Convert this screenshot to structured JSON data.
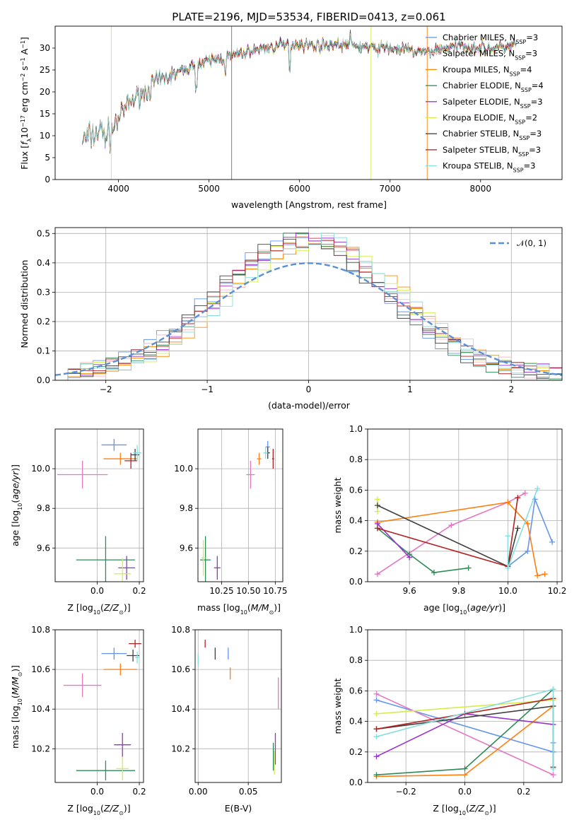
{
  "chart_data": [
    {
      "id": "spectrum",
      "type": "line",
      "title": "PLATE=2196, MJD=53534, FIBERID=0413, z=0.061",
      "xlabel": "wavelength [Angstrom, rest frame]",
      "ylabel": "Flux [f_λ 10^-17 erg cm^-2 s^-1 A^-1]",
      "xlim": [
        3300,
        8900
      ],
      "ylim": [
        0,
        35
      ],
      "xticks": [
        4000,
        5000,
        6000,
        7000,
        8000
      ],
      "yticks": [
        0,
        5,
        10,
        15,
        20,
        25,
        30
      ],
      "grid": false,
      "legend_position": "top-right",
      "continuum": {
        "x": [
          3600,
          3700,
          3800,
          3900,
          4000,
          4100,
          4200,
          4300,
          4400,
          4500,
          4600,
          4800,
          5000,
          5200,
          5400,
          5600,
          5800,
          6000,
          6200,
          6400,
          6600,
          6800,
          7000,
          7200,
          7400,
          7600,
          7800,
          8000,
          8200,
          8400
        ],
        "y": [
          9,
          10,
          11,
          10,
          14,
          17,
          19,
          20,
          22,
          23,
          24,
          25.5,
          27,
          28,
          29,
          30,
          30.5,
          31,
          30.5,
          31,
          30.5,
          30,
          30,
          29.5,
          29,
          30,
          30.5,
          30,
          30,
          31
        ]
      },
      "series": [
        {
          "name": "Chabrier MILES, N_SSP=3",
          "color": "#6495ed"
        },
        {
          "name": "Salpeter MILES, N_SSP=3",
          "color": "#ffb6c1"
        },
        {
          "name": "Kroupa MILES, N_SSP=4",
          "color": "#ff8c00"
        },
        {
          "name": "Chabrier ELODIE, N_SSP=4",
          "color": "#2e8b57"
        },
        {
          "name": "Salpeter ELODIE, N_SSP=3",
          "color": "#9932cc"
        },
        {
          "name": "Kroupa ELODIE, N_SSP=2",
          "color": "#d4ed4a"
        },
        {
          "name": "Chabrier STELIB, N_SSP=3",
          "color": "#404040"
        },
        {
          "name": "Salpeter STELIB, N_SSP=3",
          "color": "#b22222"
        },
        {
          "name": "Kroupa STELIB, N_SSP=3",
          "color": "#87dede"
        }
      ]
    },
    {
      "id": "residuals",
      "type": "line",
      "xlabel": "(data-model)/error",
      "ylabel": "Normed distribution",
      "xlim": [
        -2.5,
        2.5
      ],
      "ylim": [
        0,
        0.52
      ],
      "xticks": [
        -2,
        -1,
        0,
        1,
        2
      ],
      "yticks": [
        0.0,
        0.1,
        0.2,
        0.3,
        0.4,
        0.5
      ],
      "grid": true,
      "legend_position": "top-right",
      "legend": "𝒩(0, 1)",
      "normal_curve": {
        "mean": 0,
        "sigma": 1,
        "color": "#5b8fd6"
      }
    },
    {
      "id": "age-vs-Z",
      "type": "scatter",
      "xlabel": "Z [log10(Z/Z⊙)]",
      "ylabel": "age  [log10(age/yr)]",
      "xlim": [
        -0.2,
        0.22
      ],
      "ylim": [
        9.43,
        10.2
      ],
      "xticks": [
        0.0,
        0.2
      ],
      "yticks": [
        9.6,
        9.8,
        10.0
      ],
      "grid": true,
      "points": [
        {
          "x": 0.08,
          "y": 10.12,
          "xerr": 0.06,
          "yerr": 0.03,
          "c": "#6495ed"
        },
        {
          "x": -0.07,
          "y": 9.97,
          "xerr": 0.12,
          "yerr": 0.07,
          "c": "#e377c2"
        },
        {
          "x": 0.11,
          "y": 10.05,
          "xerr": 0.08,
          "yerr": 0.03,
          "c": "#ff7f0e"
        },
        {
          "x": 0.04,
          "y": 9.54,
          "xerr": 0.14,
          "yerr": 0.12,
          "c": "#2e8b57"
        },
        {
          "x": 0.14,
          "y": 9.5,
          "xerr": 0.04,
          "yerr": 0.06,
          "c": "#9932cc"
        },
        {
          "x": 0.12,
          "y": 9.47,
          "xerr": 0.04,
          "yerr": 0.08,
          "c": "#d4ed4a"
        },
        {
          "x": 0.18,
          "y": 10.07,
          "xerr": 0.02,
          "yerr": 0.03,
          "c": "#404040"
        },
        {
          "x": 0.16,
          "y": 10.04,
          "xerr": 0.03,
          "yerr": 0.04,
          "c": "#b22222"
        },
        {
          "x": 0.19,
          "y": 10.08,
          "xerr": 0.02,
          "yerr": 0.04,
          "c": "#87dede"
        }
      ]
    },
    {
      "id": "age-vs-mass",
      "type": "scatter",
      "xlabel": "mass [log10(M/M⊙)]",
      "ylabel": "",
      "xlim": [
        10.03,
        10.82
      ],
      "ylim": [
        9.43,
        10.2
      ],
      "xticks": [
        10.25,
        10.5,
        10.75
      ],
      "yticks": [
        9.6,
        9.8,
        10.0
      ],
      "grid": true,
      "points": [
        {
          "x": 10.68,
          "y": 10.11,
          "xerr": 0.02,
          "yerr": 0.03,
          "c": "#6495ed"
        },
        {
          "x": 10.52,
          "y": 9.97,
          "xerr": 0.04,
          "yerr": 0.07,
          "c": "#e377c2"
        },
        {
          "x": 10.6,
          "y": 10.05,
          "xerr": 0.02,
          "yerr": 0.03,
          "c": "#ff7f0e"
        },
        {
          "x": 10.1,
          "y": 9.54,
          "xerr": 0.05,
          "yerr": 0.12,
          "c": "#2e8b57"
        },
        {
          "x": 10.21,
          "y": 9.5,
          "xerr": 0.03,
          "yerr": 0.06,
          "c": "#9932cc"
        },
        {
          "x": 10.08,
          "y": 9.55,
          "xerr": 0.02,
          "yerr": 0.09,
          "c": "#d4ed4a"
        },
        {
          "x": 10.68,
          "y": 10.08,
          "xerr": 0.02,
          "yerr": 0.03,
          "c": "#404040"
        },
        {
          "x": 10.73,
          "y": 10.05,
          "xerr": 0.01,
          "yerr": 0.05,
          "c": "#b22222"
        },
        {
          "x": 10.66,
          "y": 10.08,
          "xerr": 0.02,
          "yerr": 0.03,
          "c": "#87dede"
        }
      ]
    },
    {
      "id": "mass-weight-vs-age",
      "type": "line",
      "xlabel": "age  [log10(age/yr)]",
      "ylabel": "mass weight",
      "xlim": [
        9.43,
        10.22
      ],
      "ylim": [
        0,
        1
      ],
      "xticks": [
        9.6,
        9.8,
        10.0,
        10.2
      ],
      "yticks": [
        0.0,
        0.2,
        0.4,
        0.6,
        0.8,
        1.0
      ],
      "grid": true,
      "series": [
        {
          "c": "#6495ed",
          "x": [
            10.0,
            10.08,
            10.11,
            10.18
          ],
          "y": [
            0.1,
            0.2,
            0.54,
            0.26
          ]
        },
        {
          "c": "#e377c2",
          "x": [
            9.47,
            9.77,
            10.0,
            10.07
          ],
          "y": [
            0.05,
            0.37,
            0.52,
            0.58
          ]
        },
        {
          "c": "#ff7f0e",
          "x": [
            9.47,
            10.0,
            10.08,
            10.12,
            10.15
          ],
          "y": [
            0.39,
            0.52,
            0.38,
            0.04,
            0.05
          ]
        },
        {
          "c": "#2e8b57",
          "x": [
            9.47,
            9.6,
            9.7,
            9.84
          ],
          "y": [
            0.35,
            0.18,
            0.06,
            0.09
          ]
        },
        {
          "c": "#9932cc",
          "x": [
            9.47,
            9.6
          ],
          "y": [
            0.38,
            0.16
          ]
        },
        {
          "c": "#d4ed4a",
          "x": [
            9.47,
            9.47
          ],
          "y": [
            0.46,
            0.54
          ]
        },
        {
          "c": "#404040",
          "x": [
            9.47,
            10.0,
            10.04
          ],
          "y": [
            0.5,
            0.1,
            0.35
          ]
        },
        {
          "c": "#b22222",
          "x": [
            9.47,
            10.0,
            10.04
          ],
          "y": [
            0.35,
            0.1,
            0.55
          ]
        },
        {
          "c": "#87dede",
          "x": [
            10.0,
            10.0,
            10.12
          ],
          "y": [
            0.3,
            0.09,
            0.61
          ]
        }
      ]
    },
    {
      "id": "mass-vs-Z",
      "type": "scatter",
      "xlabel": "Z [log10(Z/Z⊙)]",
      "ylabel": "mass [log10(M/M⊙)]",
      "xlim": [
        -0.2,
        0.22
      ],
      "ylim": [
        10.03,
        10.8
      ],
      "xticks": [
        0.0,
        0.2
      ],
      "yticks": [
        10.2,
        10.4,
        10.6,
        10.8
      ],
      "grid": true,
      "points": [
        {
          "x": 0.08,
          "y": 10.68,
          "xerr": 0.06,
          "yerr": 0.03,
          "c": "#6495ed"
        },
        {
          "x": -0.07,
          "y": 10.52,
          "xerr": 0.09,
          "yerr": 0.06,
          "c": "#e377c2"
        },
        {
          "x": 0.11,
          "y": 10.6,
          "xerr": 0.08,
          "yerr": 0.03,
          "c": "#ff7f0e"
        },
        {
          "x": 0.04,
          "y": 10.09,
          "xerr": 0.14,
          "yerr": 0.05,
          "c": "#2e8b57"
        },
        {
          "x": 0.12,
          "y": 10.22,
          "xerr": 0.04,
          "yerr": 0.06,
          "c": "#9932cc"
        },
        {
          "x": 0.12,
          "y": 10.1,
          "xerr": 0.03,
          "yerr": 0.06,
          "c": "#d4ed4a"
        },
        {
          "x": 0.17,
          "y": 10.67,
          "xerr": 0.03,
          "yerr": 0.03,
          "c": "#404040"
        },
        {
          "x": 0.18,
          "y": 10.73,
          "xerr": 0.03,
          "yerr": 0.02,
          "c": "#b22222"
        },
        {
          "x": 0.19,
          "y": 10.66,
          "xerr": 0.01,
          "yerr": 0.03,
          "c": "#87dede"
        }
      ]
    },
    {
      "id": "mass-vs-ebv",
      "type": "scatter",
      "xlabel": "E(B-V)",
      "ylabel": "",
      "xlim": [
        -0.003,
        0.083
      ],
      "ylim": [
        10.03,
        10.8
      ],
      "xticks": [
        0.0,
        0.05
      ],
      "yticks": [
        10.2,
        10.4,
        10.6,
        10.8
      ],
      "grid": true,
      "points": [
        {
          "x": 0.03,
          "y": 10.68,
          "xerr": 0,
          "yerr": 0.03,
          "c": "#6495ed"
        },
        {
          "x": 0.08,
          "y": 10.48,
          "xerr": 0,
          "yerr": 0.08,
          "c": "#e377c2"
        },
        {
          "x": 0.032,
          "y": 10.58,
          "xerr": 0,
          "yerr": 0.03,
          "c": "#ff7f0e"
        },
        {
          "x": 0.075,
          "y": 10.16,
          "xerr": 0,
          "yerr": 0.07,
          "c": "#2e8b57"
        },
        {
          "x": 0.077,
          "y": 10.2,
          "xerr": 0,
          "yerr": 0.08,
          "c": "#9932cc"
        },
        {
          "x": 0.076,
          "y": 10.13,
          "xerr": 0,
          "yerr": 0.06,
          "c": "#d4ed4a"
        },
        {
          "x": 0.017,
          "y": 10.68,
          "xerr": 0,
          "yerr": 0.03,
          "c": "#404040"
        },
        {
          "x": 0.007,
          "y": 10.73,
          "xerr": 0,
          "yerr": 0.02,
          "c": "#b22222"
        },
        {
          "x": 0.0,
          "y": 10.65,
          "xerr": 0,
          "yerr": 0.03,
          "c": "#87dede"
        }
      ]
    },
    {
      "id": "mass-weight-vs-Z",
      "type": "line",
      "xlabel": "Z [log10(Z/Z⊙)]",
      "ylabel": "mass weight",
      "xlim": [
        -0.33,
        0.33
      ],
      "ylim": [
        0,
        1
      ],
      "xticks": [
        -0.2,
        0.0,
        0.2
      ],
      "yticks": [
        0.0,
        0.2,
        0.4,
        0.6,
        0.8,
        1.0
      ],
      "grid": true,
      "series": [
        {
          "c": "#6495ed",
          "x": [
            -0.3,
            0.3,
            0.3
          ],
          "y": [
            0.54,
            0.2,
            0.26
          ]
        },
        {
          "c": "#e377c2",
          "x": [
            -0.3,
            0.3
          ],
          "y": [
            0.58,
            0.05
          ]
        },
        {
          "c": "#ff7f0e",
          "x": [
            -0.3,
            0.0,
            0.3
          ],
          "y": [
            0.04,
            0.05,
            0.5
          ]
        },
        {
          "c": "#2e8b57",
          "x": [
            -0.3,
            0.0,
            0.3
          ],
          "y": [
            0.05,
            0.09,
            0.61
          ]
        },
        {
          "c": "#9932cc",
          "x": [
            -0.3,
            0.0,
            0.3
          ],
          "y": [
            0.17,
            0.45,
            0.38
          ]
        },
        {
          "c": "#d4ed4a",
          "x": [
            -0.3,
            0.3
          ],
          "y": [
            0.45,
            0.54
          ]
        },
        {
          "c": "#404040",
          "x": [
            -0.3,
            0.3,
            0.3
          ],
          "y": [
            0.35,
            0.5,
            0.1
          ]
        },
        {
          "c": "#b22222",
          "x": [
            -0.3,
            0.3
          ],
          "y": [
            0.35,
            0.55
          ]
        },
        {
          "c": "#87dede",
          "x": [
            -0.3,
            0.3,
            0.3
          ],
          "y": [
            0.3,
            0.61,
            0.09
          ]
        }
      ]
    }
  ]
}
